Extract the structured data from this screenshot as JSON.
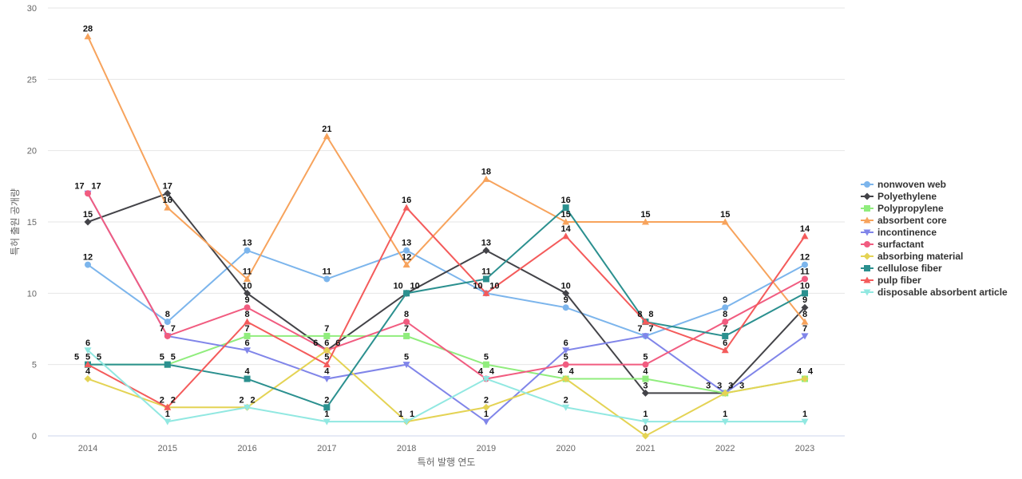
{
  "chart_data": {
    "type": "line",
    "title": "",
    "xlabel": "특허 발행 연도",
    "ylabel": "특허 출원 공개량",
    "ylim": [
      0,
      30
    ],
    "yticks": [
      0,
      5,
      10,
      15,
      20,
      25,
      30
    ],
    "grid": true,
    "legend_position": "right",
    "x": [
      "2014",
      "2015",
      "2016",
      "2017",
      "2018",
      "2019",
      "2020",
      "2021",
      "2022",
      "2023"
    ],
    "series": [
      {
        "name": "nonwoven web",
        "color": "#7cb5ec",
        "marker": "circle",
        "values": [
          12,
          8,
          13,
          11,
          13,
          10,
          9,
          7,
          9,
          12
        ]
      },
      {
        "name": "Polyethylene",
        "color": "#434348",
        "marker": "diamond",
        "values": [
          15,
          17,
          10,
          6,
          10,
          13,
          10,
          3,
          3,
          9
        ]
      },
      {
        "name": "Polypropylene",
        "color": "#90ed7d",
        "marker": "square",
        "values": [
          5,
          5,
          7,
          7,
          7,
          5,
          4,
          4,
          3,
          4
        ]
      },
      {
        "name": "absorbent core",
        "color": "#f7a35c",
        "marker": "triangle",
        "values": [
          28,
          16,
          11,
          21,
          12,
          18,
          15,
          15,
          15,
          8
        ]
      },
      {
        "name": "incontinence",
        "color": "#8085e9",
        "marker": "triangle-down",
        "values": [
          17,
          7,
          6,
          4,
          5,
          1,
          6,
          7,
          3,
          7
        ]
      },
      {
        "name": "surfactant",
        "color": "#f15c80",
        "marker": "circle",
        "values": [
          17,
          7,
          9,
          6,
          8,
          4,
          5,
          5,
          8,
          11
        ]
      },
      {
        "name": "absorbing material",
        "color": "#e4d354",
        "marker": "diamond",
        "values": [
          4,
          2,
          2,
          6,
          1,
          2,
          4,
          0,
          3,
          4
        ]
      },
      {
        "name": "cellulose fiber",
        "color": "#2b908f",
        "marker": "square",
        "values": [
          5,
          5,
          4,
          2,
          10,
          11,
          16,
          8,
          7,
          10
        ]
      },
      {
        "name": "pulp fiber",
        "color": "#f45b5b",
        "marker": "triangle",
        "values": [
          5,
          2,
          8,
          5,
          16,
          10,
          14,
          8,
          6,
          14
        ]
      },
      {
        "name": "disposable absorbent article",
        "color": "#91e8e1",
        "marker": "triangle-down",
        "values": [
          6,
          1,
          2,
          1,
          1,
          4,
          2,
          1,
          1,
          1
        ]
      }
    ]
  }
}
